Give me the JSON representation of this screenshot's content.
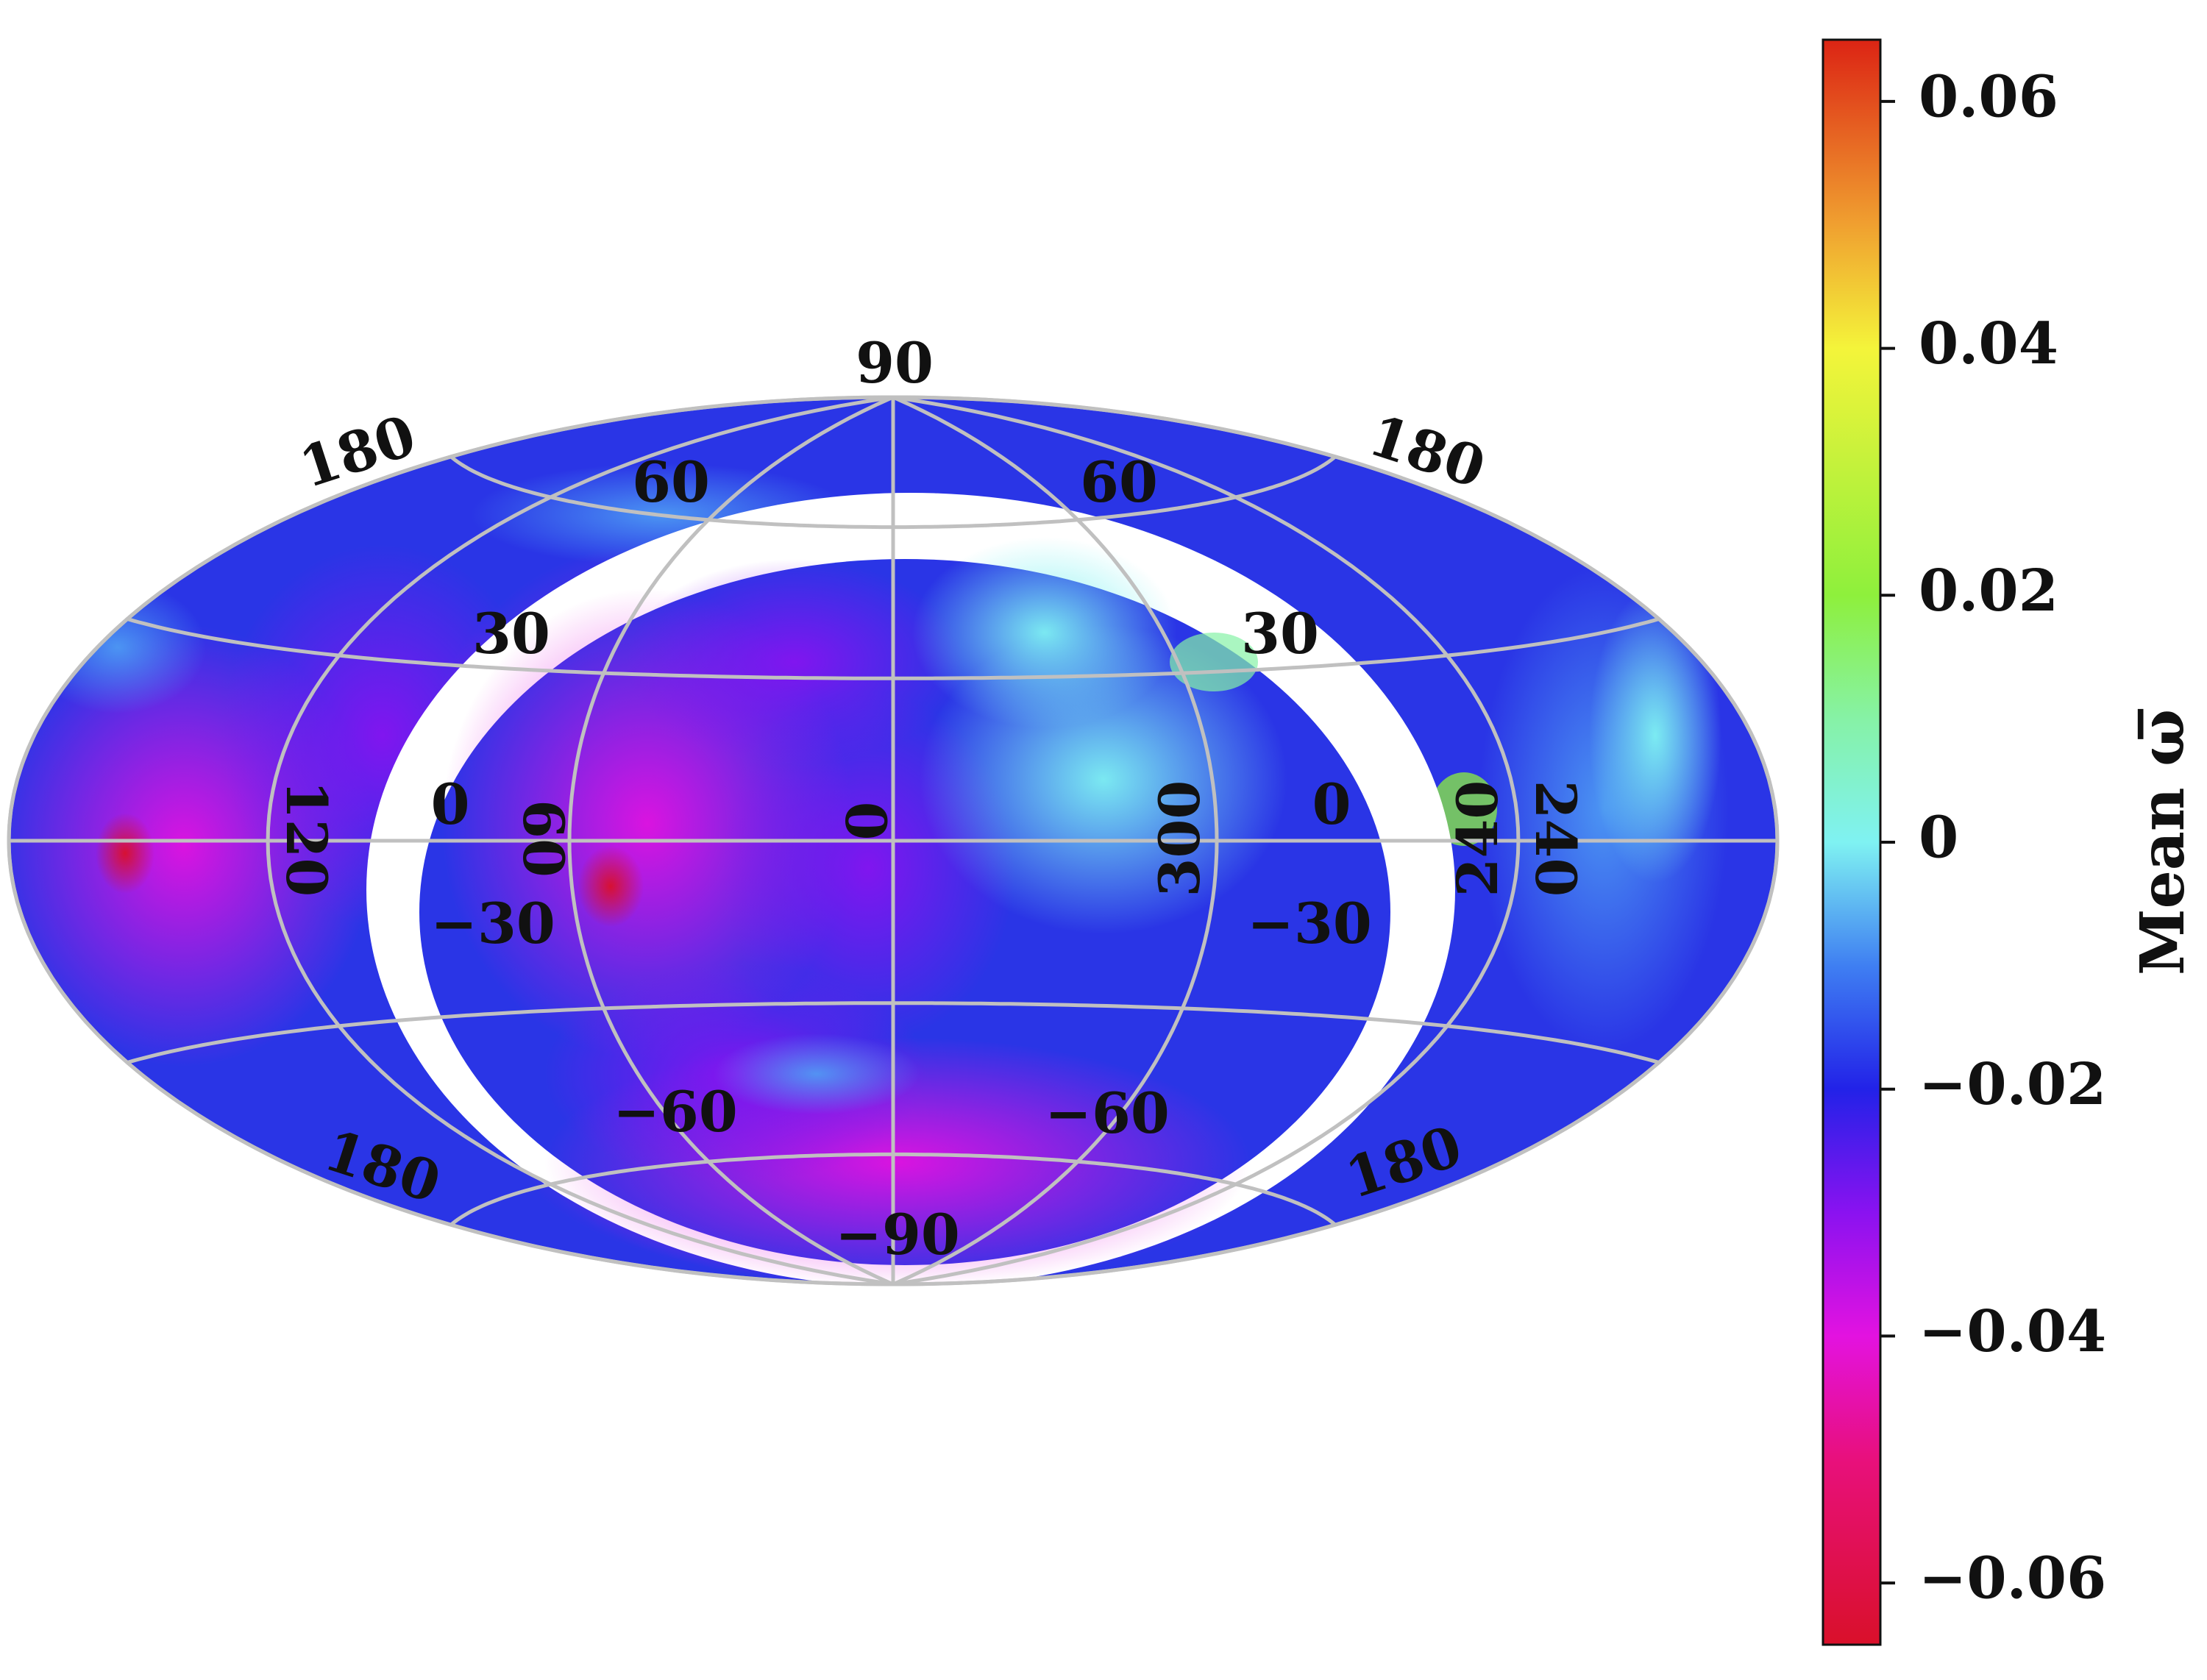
{
  "map": {
    "projection": "Hammer-Aitoff (all-sky)",
    "meridian_labels": {
      "center": "0",
      "left_inner": "60",
      "left_outer": "120",
      "right_inner": "300",
      "right_outer": "240",
      "right_outer_flipped": "240"
    },
    "latitude_labels_left": {
      "top": "90",
      "p60": "60",
      "p30": "30",
      "eq": "0",
      "m30": "−30",
      "m60": "−60",
      "bottom": "−90"
    },
    "latitude_labels_right": {
      "p60": "60",
      "p30": "30",
      "eq": "0",
      "m30": "−30",
      "m60": "−60"
    },
    "edge_labels": {
      "top_left": "180",
      "top_right": "180",
      "bottom_left": "180",
      "bottom_right": "180"
    },
    "colors": {
      "graticule": "#c0c0c0",
      "gap": "#ffffff"
    }
  },
  "colorbar": {
    "title": "Mean ω̅",
    "vmin": -0.065,
    "vmax": 0.065,
    "ticks": [
      {
        "value": 0.06,
        "label": "0.06"
      },
      {
        "value": 0.04,
        "label": "0.04"
      },
      {
        "value": 0.02,
        "label": "0.02"
      },
      {
        "value": 0,
        "label": "0"
      },
      {
        "value": -0.02,
        "label": "−0.02"
      },
      {
        "value": -0.04,
        "label": "−0.04"
      },
      {
        "value": -0.06,
        "label": "−0.06"
      }
    ],
    "stops": [
      {
        "v": -0.065,
        "color": "#d9102a"
      },
      {
        "v": -0.05,
        "color": "#e8107c"
      },
      {
        "v": -0.04,
        "color": "#e312e0"
      },
      {
        "v": -0.03,
        "color": "#8a12f0"
      },
      {
        "v": -0.02,
        "color": "#2222e8"
      },
      {
        "v": -0.01,
        "color": "#3f7ff2"
      },
      {
        "v": 0.0,
        "color": "#7ff2f2"
      },
      {
        "v": 0.01,
        "color": "#86f2a6"
      },
      {
        "v": 0.02,
        "color": "#8ef03c"
      },
      {
        "v": 0.04,
        "color": "#f4f43a"
      },
      {
        "v": 0.05,
        "color": "#f0a030"
      },
      {
        "v": 0.065,
        "color": "#dc2414"
      }
    ]
  }
}
